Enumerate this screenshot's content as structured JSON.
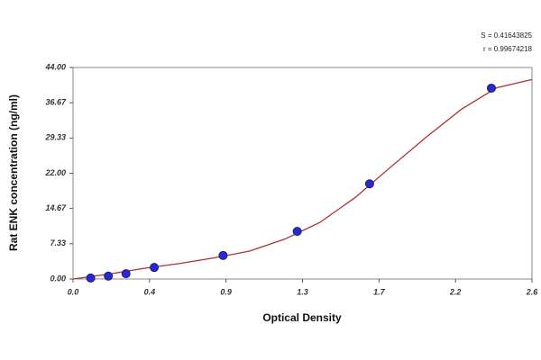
{
  "chart_data": {
    "type": "scatter",
    "xlabel": "Optical Density",
    "ylabel": "Rat ENK concentration (ng/ml)",
    "annotations": [
      "S = 0.41643825",
      "r = 0.99674218"
    ],
    "xlim": [
      0,
      2.6
    ],
    "ylim": [
      0,
      44
    ],
    "xticks": [
      {
        "value": 0,
        "label": "0.0"
      },
      {
        "value": 0.4333,
        "label": "0.4"
      },
      {
        "value": 0.8667,
        "label": "0.9"
      },
      {
        "value": 1.3,
        "label": "1.3"
      },
      {
        "value": 1.7333,
        "label": "1.7"
      },
      {
        "value": 2.1667,
        "label": "2.2"
      },
      {
        "value": 2.6,
        "label": "2.6"
      }
    ],
    "yticks": [
      {
        "value": 0,
        "label": "0.00"
      },
      {
        "value": 7.33,
        "label": "7.33"
      },
      {
        "value": 14.67,
        "label": "14.67"
      },
      {
        "value": 22,
        "label": "22.00"
      },
      {
        "value": 29.33,
        "label": "29.33"
      },
      {
        "value": 36.67,
        "label": "36.67"
      },
      {
        "value": 44,
        "label": "44.00"
      }
    ],
    "grid": false,
    "series": [
      {
        "type": "line",
        "color": "#b03030",
        "x": [
          0,
          0.2,
          0.4,
          0.6,
          0.8,
          1.0,
          1.2,
          1.4,
          1.6,
          1.8,
          2.0,
          2.2,
          2.4,
          2.6
        ],
        "values": [
          0,
          1.0,
          2.2,
          3.2,
          4.4,
          5.8,
          8.3,
          11.8,
          17.0,
          23.3,
          29.5,
          35.3,
          39.8,
          41.5
        ]
      },
      {
        "type": "scatter",
        "color": "#2a2acc",
        "x": [
          0.1,
          0.2,
          0.3,
          0.46,
          0.85,
          1.27,
          1.68,
          2.37
        ],
        "values": [
          0.2,
          0.6,
          1.1,
          2.4,
          4.9,
          9.9,
          19.8,
          39.7
        ]
      }
    ]
  }
}
